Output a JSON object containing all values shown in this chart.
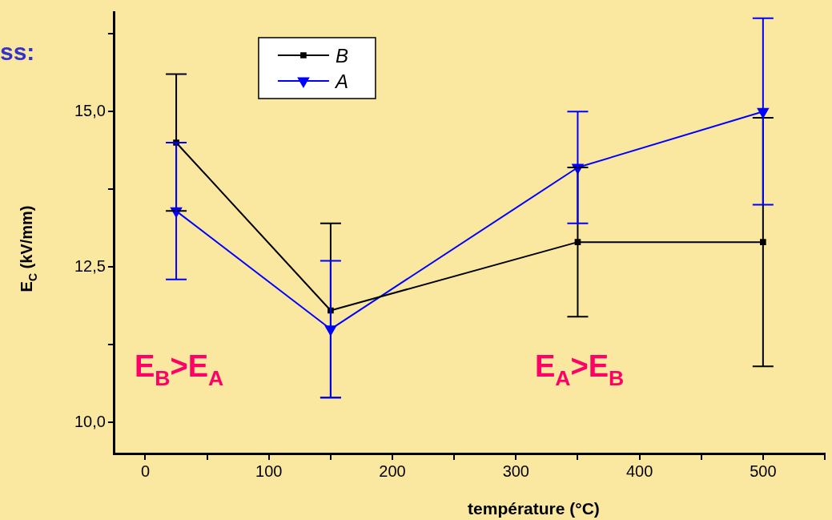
{
  "chart_data": {
    "type": "line",
    "title": "ss:",
    "xlabel": "température (°C)",
    "ylabel": "E$_{C}$ (kV/mm)",
    "annotations": [
      "E$_{B}$>E$_{A}$",
      "E$_{A}$>E$_{B}$"
    ],
    "x": [
      25,
      150,
      350,
      500
    ],
    "series": [
      {
        "name": "B",
        "color": "#000000",
        "marker": "square",
        "values": [
          14.5,
          11.8,
          12.9,
          12.9
        ],
        "errors": [
          1.1,
          1.4,
          1.2,
          2.0
        ]
      },
      {
        "name": "A",
        "color": "#0000ff",
        "marker": "triangle",
        "values": [
          13.4,
          11.5,
          14.1,
          15.0
        ],
        "errors": [
          1.1,
          1.1,
          0.9,
          1.5
        ]
      }
    ],
    "xlim": [
      -25,
      550
    ],
    "xticks": [
      0,
      {
        "value": 50,
        "label": null
      },
      100,
      {
        "value": 150,
        "label": null
      },
      200,
      {
        "value": 250,
        "label": null
      },
      300,
      {
        "value": 350,
        "label": null
      },
      400,
      {
        "value": 450,
        "label": null
      },
      500,
      {
        "value": 550,
        "label": null
      }
    ],
    "ylim": [
      9.5,
      16.6
    ],
    "yticks": [
      {
        "value": 10,
        "label": "10,0"
      },
      {
        "value": 11.25,
        "label": null
      },
      {
        "value": 12.5,
        "label": "12,5"
      },
      {
        "value": 13.75,
        "label": null
      },
      {
        "value": 15,
        "label": "15,0"
      },
      {
        "value": 16.25,
        "label": null
      }
    ],
    "grid": false,
    "legend": "top left",
    "line_style": "solid"
  }
}
